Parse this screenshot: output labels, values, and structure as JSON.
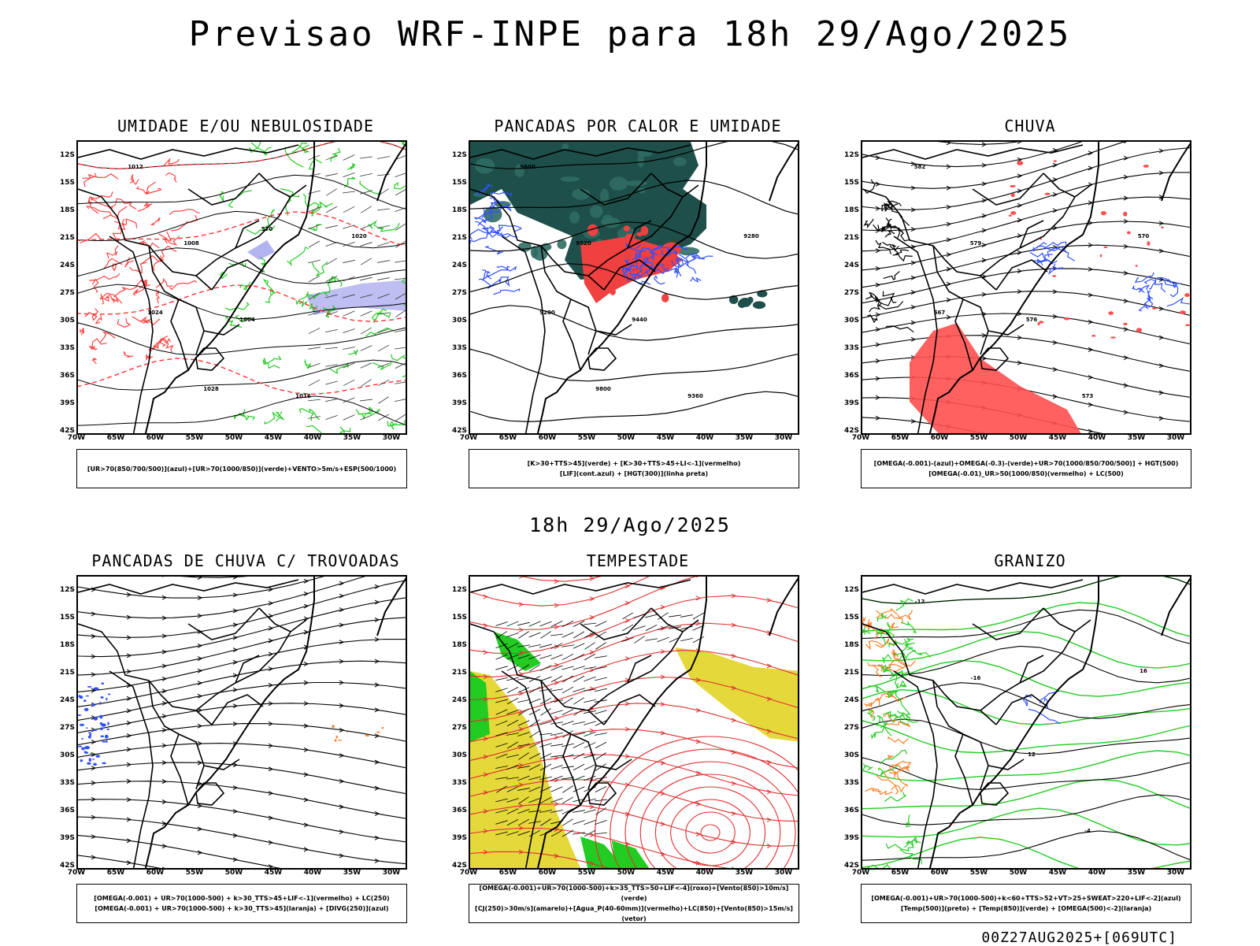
{
  "title": "Previsao WRF-INPE  para 18h 29/Ago/2025",
  "mid_title": "18h 29/Ago/2025",
  "footer": "00Z27AUG2025+[069UTC]",
  "lat_labels": [
    "12S",
    "15S",
    "18S",
    "21S",
    "24S",
    "27S",
    "30S",
    "33S",
    "36S",
    "39S",
    "42S"
  ],
  "lon_labels": [
    "70W",
    "65W",
    "60W",
    "55W",
    "50W",
    "45W",
    "40W",
    "35W",
    "30W"
  ],
  "panels": [
    {
      "title": "UMIDADE E/OU NEBULOSIDADE",
      "caption": [
        "[UR>70(850/700/500)](azul)+[UR>70(1000/850)](verde)+VENTO>5m/s+ESP(500/1000)"
      ],
      "labels": [
        "1012",
        "1008",
        "1004",
        "1016",
        "1020",
        "1024",
        "1028",
        "570"
      ]
    },
    {
      "title": "PANCADAS POR CALOR E UMIDADE",
      "caption": [
        "[K>30+TTS>45](verde) + [K>30+TTS>45+LI<-1](vermelho)",
        "[LIF](cont.azul) + [HGT(300)](linha preta)"
      ],
      "labels": [
        "9600",
        "9520",
        "9440",
        "9360",
        "9280",
        "9200",
        "9800"
      ]
    },
    {
      "title": "CHUVA",
      "caption": [
        "[OMEGA(-0.001)-(azul)+OMEGA(-0.3)-(verde)+UR>70(1000/850/700/500)] + HGT(500)",
        "[OMEGA(-0.01)_UR>50(1000/850)(vermelho) + LC(500)"
      ],
      "labels": [
        "582",
        "579",
        "576",
        "573",
        "570",
        "567"
      ]
    },
    {
      "title": "PANCADAS DE CHUVA C/ TROVOADAS",
      "caption": [
        "[OMEGA(-0.001) + UR>70(1000-500) + k>30_TTS>45+LIF<-1](vermelho) + LC(250)",
        "[OMEGA(-0.001) + UR>70(1000-500) + k>30_TTS>45](laranja) + [DIVG(250)](azul)"
      ],
      "labels": []
    },
    {
      "title": "TEMPESTADE",
      "caption": [
        "[OMEGA(-0.001)+UR>70(1000-500)+k>35_TTS>50+LIF<-4](roxo)+[Vento(850)>10m/s](verde)",
        "[CJ(250)>30m/s](amarelo)+[Agua_P(40-60mm)](vermelho)+LC(850)+[Vento(850)>15m/s](vetor)"
      ],
      "labels": []
    },
    {
      "title": "GRANIZO",
      "caption": [
        "[OMEGA(-0.001)+UR>70(1000-500)+k<60+TTS>52+VT>25+SWEAT>220+LIF<-2](azul)",
        "[Temp(500)](preto) + [Temp(850)](verde) + [OMEGA(500)<-2](laranja)"
      ],
      "labels": [
        "-12",
        "-16",
        "12",
        "-4",
        "16"
      ]
    }
  ]
}
